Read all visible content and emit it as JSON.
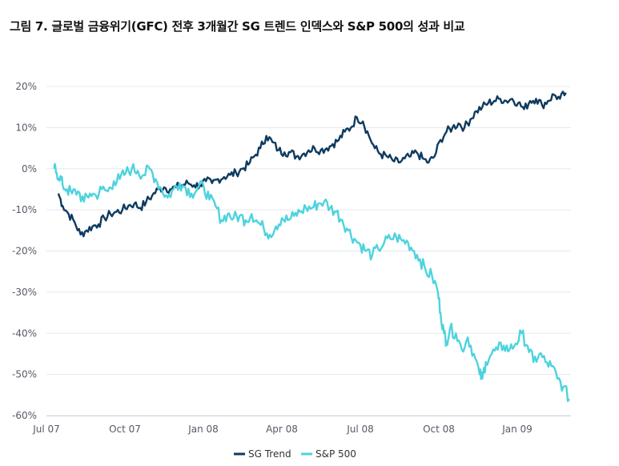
{
  "chart_data": {
    "type": "line",
    "title": "그림 7. 글로벌 금융위기(GFC) 전후 3개월간 SG 트렌드 인덱스와 S&P 500의 성과 비교",
    "xlabel": "",
    "ylabel": "",
    "x_tick_labels": [
      "Jul 07",
      "Oct 07",
      "Jan 08",
      "Apr 08",
      "Jul 08",
      "Oct 08",
      "Jan 09"
    ],
    "y_tick_labels": [
      "20%",
      "10%",
      "0%",
      "-10%",
      "-20%",
      "-30%",
      "-40%",
      "-50%",
      "-60%"
    ],
    "y_ticks": [
      20,
      10,
      0,
      -10,
      -20,
      -30,
      -40,
      -50,
      -60
    ],
    "ylim": [
      -60,
      20
    ],
    "grid": "horizontal",
    "legend_position": "bottom-center",
    "series": [
      {
        "name": "SG Trend",
        "color": "#0e3a5f",
        "points": [
          [
            "2007-07-15",
            -6
          ],
          [
            "2007-07-20",
            -9
          ],
          [
            "2007-07-27",
            -11
          ],
          [
            "2007-08-03",
            -13
          ],
          [
            "2007-08-10",
            -16
          ],
          [
            "2007-08-17",
            -15
          ],
          [
            "2007-08-24",
            -14
          ],
          [
            "2007-08-31",
            -13.5
          ],
          [
            "2007-09-07",
            -12
          ],
          [
            "2007-09-14",
            -11
          ],
          [
            "2007-09-21",
            -10.5
          ],
          [
            "2007-09-28",
            -10
          ],
          [
            "2007-10-05",
            -9
          ],
          [
            "2007-10-12",
            -8.5
          ],
          [
            "2007-10-19",
            -9.5
          ],
          [
            "2007-10-26",
            -8
          ],
          [
            "2007-11-02",
            -6.5
          ],
          [
            "2007-11-09",
            -5
          ],
          [
            "2007-11-16",
            -4.5
          ],
          [
            "2007-11-23",
            -5
          ],
          [
            "2007-11-30",
            -4.5
          ],
          [
            "2007-12-07",
            -4
          ],
          [
            "2007-12-14",
            -3.5
          ],
          [
            "2007-12-21",
            -4
          ],
          [
            "2007-12-28",
            -4
          ],
          [
            "2008-01-04",
            -3
          ],
          [
            "2008-01-11",
            -3.5
          ],
          [
            "2008-01-18",
            -2.5
          ],
          [
            "2008-01-25",
            -2
          ],
          [
            "2008-02-01",
            -1.5
          ],
          [
            "2008-02-08",
            -1
          ],
          [
            "2008-02-15",
            0
          ],
          [
            "2008-02-22",
            1
          ],
          [
            "2008-02-29",
            3
          ],
          [
            "2008-03-07",
            5
          ],
          [
            "2008-03-14",
            8
          ],
          [
            "2008-03-21",
            6.5
          ],
          [
            "2008-03-28",
            4.5
          ],
          [
            "2008-04-04",
            4
          ],
          [
            "2008-04-11",
            4
          ],
          [
            "2008-04-18",
            3
          ],
          [
            "2008-04-25",
            3.5
          ],
          [
            "2008-05-02",
            4.5
          ],
          [
            "2008-05-09",
            5
          ],
          [
            "2008-05-16",
            4.5
          ],
          [
            "2008-05-23",
            5
          ],
          [
            "2008-05-30",
            6
          ],
          [
            "2008-06-06",
            7
          ],
          [
            "2008-06-13",
            9
          ],
          [
            "2008-06-20",
            10
          ],
          [
            "2008-06-27",
            12.5
          ],
          [
            "2008-07-04",
            11.5
          ],
          [
            "2008-07-11",
            8
          ],
          [
            "2008-07-18",
            5
          ],
          [
            "2008-07-25",
            3.5
          ],
          [
            "2008-08-01",
            3
          ],
          [
            "2008-08-08",
            2
          ],
          [
            "2008-08-15",
            1.5
          ],
          [
            "2008-08-22",
            2.5
          ],
          [
            "2008-08-29",
            3
          ],
          [
            "2008-09-05",
            4
          ],
          [
            "2008-09-12",
            2.5
          ],
          [
            "2008-09-19",
            1.5
          ],
          [
            "2008-09-26",
            3
          ],
          [
            "2008-10-03",
            7
          ],
          [
            "2008-10-10",
            9
          ],
          [
            "2008-10-17",
            10
          ],
          [
            "2008-10-24",
            11
          ],
          [
            "2008-10-31",
            10
          ],
          [
            "2008-11-07",
            12
          ],
          [
            "2008-11-14",
            14
          ],
          [
            "2008-11-21",
            15
          ],
          [
            "2008-11-28",
            16
          ],
          [
            "2008-12-05",
            16.5
          ],
          [
            "2008-12-12",
            17
          ],
          [
            "2008-12-19",
            16.5
          ],
          [
            "2008-12-26",
            17
          ],
          [
            "2009-01-02",
            16
          ],
          [
            "2009-01-09",
            14.5
          ],
          [
            "2009-01-16",
            16.5
          ],
          [
            "2009-01-23",
            17
          ],
          [
            "2009-01-30",
            15.5
          ],
          [
            "2009-02-06",
            16.5
          ],
          [
            "2009-02-13",
            18
          ],
          [
            "2009-02-20",
            17
          ],
          [
            "2009-02-27",
            18.5
          ]
        ]
      },
      {
        "name": "S&P 500",
        "color": "#4dd3de",
        "points": [
          [
            "2007-07-10",
            0
          ],
          [
            "2007-07-13",
            -1
          ],
          [
            "2007-07-17",
            -2
          ],
          [
            "2007-07-20",
            -4
          ],
          [
            "2007-07-25",
            -5
          ],
          [
            "2007-07-31",
            -6
          ],
          [
            "2007-08-07",
            -5.5
          ],
          [
            "2007-08-14",
            -8
          ],
          [
            "2007-08-21",
            -6
          ],
          [
            "2007-08-28",
            -6.5
          ],
          [
            "2007-09-04",
            -5
          ],
          [
            "2007-09-11",
            -5.5
          ],
          [
            "2007-09-18",
            -3
          ],
          [
            "2007-09-25",
            -2.5
          ],
          [
            "2007-10-02",
            -1
          ],
          [
            "2007-10-09",
            0
          ],
          [
            "2007-10-16",
            -0.5
          ],
          [
            "2007-10-23",
            -1.5
          ],
          [
            "2007-10-30",
            0
          ],
          [
            "2007-11-06",
            -2.5
          ],
          [
            "2007-11-13",
            -5
          ],
          [
            "2007-11-20",
            -7
          ],
          [
            "2007-11-27",
            -5
          ],
          [
            "2007-12-04",
            -3.5
          ],
          [
            "2007-12-11",
            -4.5
          ],
          [
            "2007-12-18",
            -6
          ],
          [
            "2007-12-25",
            -5
          ],
          [
            "2008-01-01",
            -4
          ],
          [
            "2008-01-08",
            -7.5
          ],
          [
            "2008-01-15",
            -9
          ],
          [
            "2008-01-22",
            -12.5
          ],
          [
            "2008-01-29",
            -11
          ],
          [
            "2008-02-05",
            -12
          ],
          [
            "2008-02-12",
            -11.5
          ],
          [
            "2008-02-19",
            -12.5
          ],
          [
            "2008-02-26",
            -11
          ],
          [
            "2008-03-04",
            -13
          ],
          [
            "2008-03-11",
            -14.5
          ],
          [
            "2008-03-18",
            -16
          ],
          [
            "2008-03-25",
            -14
          ],
          [
            "2008-04-01",
            -12
          ],
          [
            "2008-04-08",
            -12.5
          ],
          [
            "2008-04-15",
            -11.5
          ],
          [
            "2008-04-22",
            -10.5
          ],
          [
            "2008-04-29",
            -9.5
          ],
          [
            "2008-05-06",
            -9.5
          ],
          [
            "2008-05-13",
            -8.5
          ],
          [
            "2008-05-20",
            -8
          ],
          [
            "2008-05-27",
            -9.5
          ],
          [
            "2008-06-03",
            -10.5
          ],
          [
            "2008-06-10",
            -12.5
          ],
          [
            "2008-06-17",
            -15
          ],
          [
            "2008-06-24",
            -17
          ],
          [
            "2008-07-01",
            -18.5
          ],
          [
            "2008-07-08",
            -20
          ],
          [
            "2008-07-15",
            -21
          ],
          [
            "2008-07-22",
            -19.5
          ],
          [
            "2008-07-29",
            -18
          ],
          [
            "2008-08-05",
            -17
          ],
          [
            "2008-08-12",
            -16.5
          ],
          [
            "2008-08-19",
            -17.5
          ],
          [
            "2008-08-26",
            -18
          ],
          [
            "2008-09-02",
            -20
          ],
          [
            "2008-09-09",
            -22
          ],
          [
            "2008-09-16",
            -25
          ],
          [
            "2008-09-23",
            -26
          ],
          [
            "2008-09-30",
            -30
          ],
          [
            "2008-10-03",
            -35
          ],
          [
            "2008-10-07",
            -40
          ],
          [
            "2008-10-10",
            -42
          ],
          [
            "2008-10-14",
            -39
          ],
          [
            "2008-10-21",
            -40
          ],
          [
            "2008-10-28",
            -44
          ],
          [
            "2008-11-04",
            -41
          ],
          [
            "2008-11-11",
            -45
          ],
          [
            "2008-11-18",
            -50
          ],
          [
            "2008-11-21",
            -51
          ],
          [
            "2008-11-25",
            -47
          ],
          [
            "2008-12-02",
            -45
          ],
          [
            "2008-12-09",
            -44
          ],
          [
            "2008-12-16",
            -43
          ],
          [
            "2008-12-23",
            -44
          ],
          [
            "2008-12-30",
            -42.5
          ],
          [
            "2009-01-06",
            -40
          ],
          [
            "2009-01-13",
            -43
          ],
          [
            "2009-01-20",
            -47
          ],
          [
            "2009-01-27",
            -45
          ],
          [
            "2009-02-03",
            -47
          ],
          [
            "2009-02-10",
            -48
          ],
          [
            "2009-02-17",
            -51
          ],
          [
            "2009-02-24",
            -53
          ],
          [
            "2009-03-03",
            -56
          ]
        ]
      }
    ]
  }
}
